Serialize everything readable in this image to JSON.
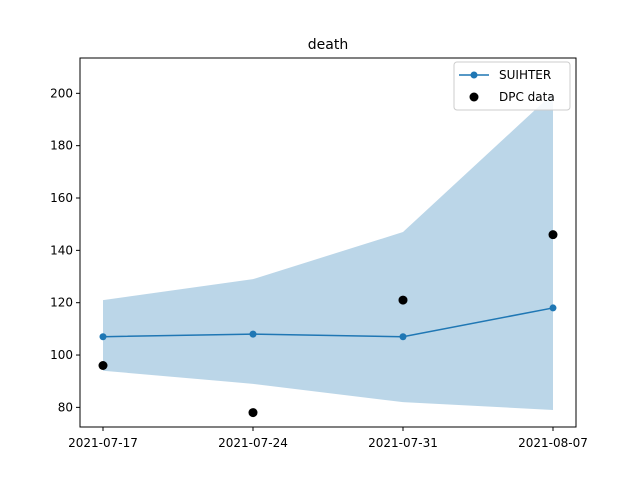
{
  "chart_data": {
    "type": "line",
    "title": "death",
    "xlabel": "",
    "ylabel": "",
    "x": [
      "2021-07-17",
      "2021-07-24",
      "2021-07-31",
      "2021-08-07"
    ],
    "x_tick_labels": [
      "2021-07-17",
      "2021-07-24",
      "2021-07-31",
      "2021-08-07"
    ],
    "ylim": [
      72.5,
      213.5
    ],
    "y_ticks": [
      80,
      100,
      120,
      140,
      160,
      180,
      200
    ],
    "y_tick_labels": [
      "80",
      "100",
      "120",
      "140",
      "160",
      "180",
      "200"
    ],
    "series": [
      {
        "name": "SUIHTER",
        "kind": "line-with-markers",
        "color": "#1f77b4",
        "values": [
          107,
          108,
          107,
          118
        ]
      },
      {
        "name": "DPC data",
        "kind": "scatter",
        "color": "#000000",
        "values": [
          96,
          78,
          121,
          146
        ]
      }
    ],
    "band": {
      "color": "#1f77b4",
      "lower": [
        94,
        89,
        82,
        79
      ],
      "upper": [
        121,
        129,
        147,
        200
      ]
    },
    "grid": false,
    "legend_position": "top-right"
  }
}
